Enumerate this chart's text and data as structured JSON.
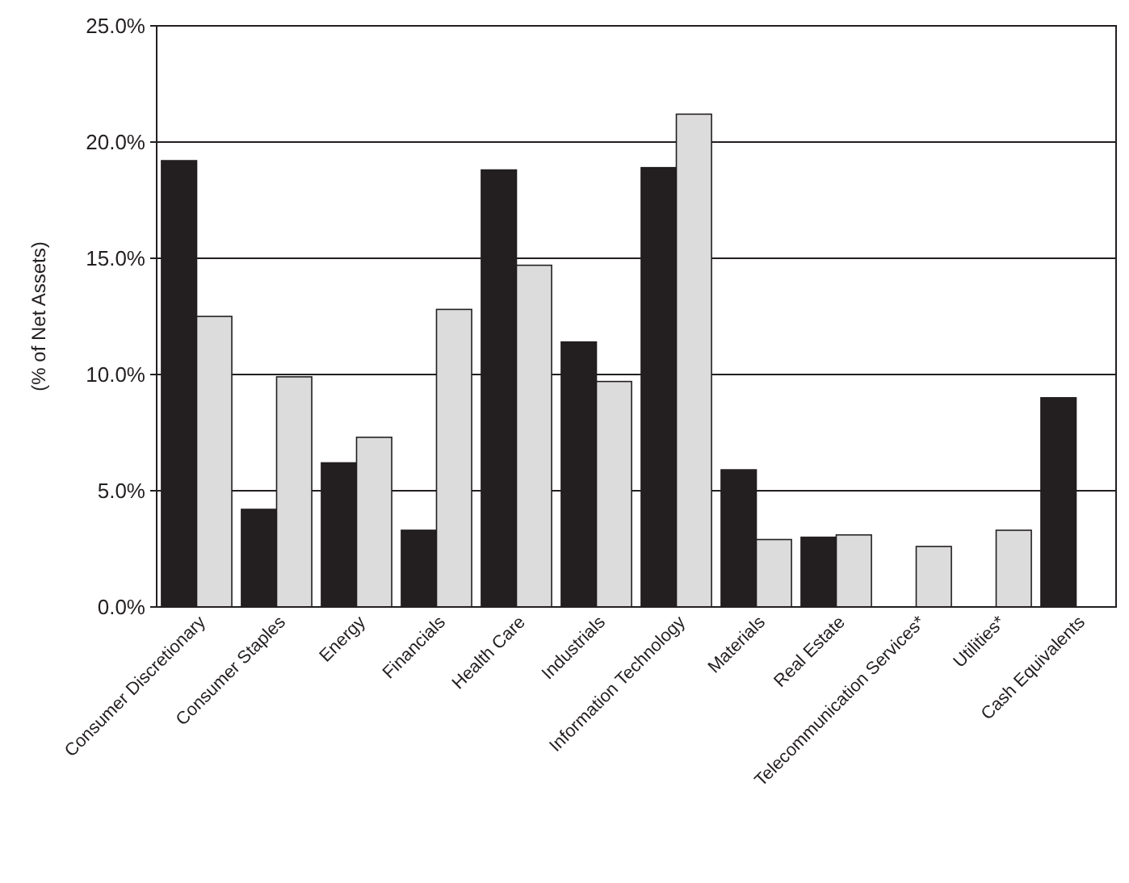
{
  "chart_data": {
    "type": "bar",
    "ylabel": "(% of Net Assets)",
    "categories": [
      "Consumer Discretionary",
      "Consumer Staples",
      "Energy",
      "Financials",
      "Health Care",
      "Industrials",
      "Information Technology",
      "Materials",
      "Real Estate",
      "Telecommunication Services*",
      "Utilities*",
      "Cash Equivalents"
    ],
    "series": [
      {
        "color": "#231f20",
        "values": [
          19.2,
          4.2,
          6.2,
          3.3,
          18.8,
          11.4,
          18.9,
          5.9,
          3.0,
          0,
          0,
          9.0
        ]
      },
      {
        "color": "#dcdcdc",
        "values": [
          12.5,
          9.9,
          7.3,
          12.8,
          14.7,
          9.7,
          21.2,
          2.9,
          3.1,
          2.6,
          3.3,
          null
        ]
      }
    ],
    "ylim": [
      0,
      25
    ],
    "yticks": [
      {
        "value": 0,
        "label": "0.0%"
      },
      {
        "value": 5,
        "label": "5.0%"
      },
      {
        "value": 10,
        "label": "10.0%"
      },
      {
        "value": 15,
        "label": "15.0%"
      },
      {
        "value": 20,
        "label": "20.0%"
      },
      {
        "value": 25,
        "label": "25.0%"
      }
    ],
    "grid": "y"
  }
}
